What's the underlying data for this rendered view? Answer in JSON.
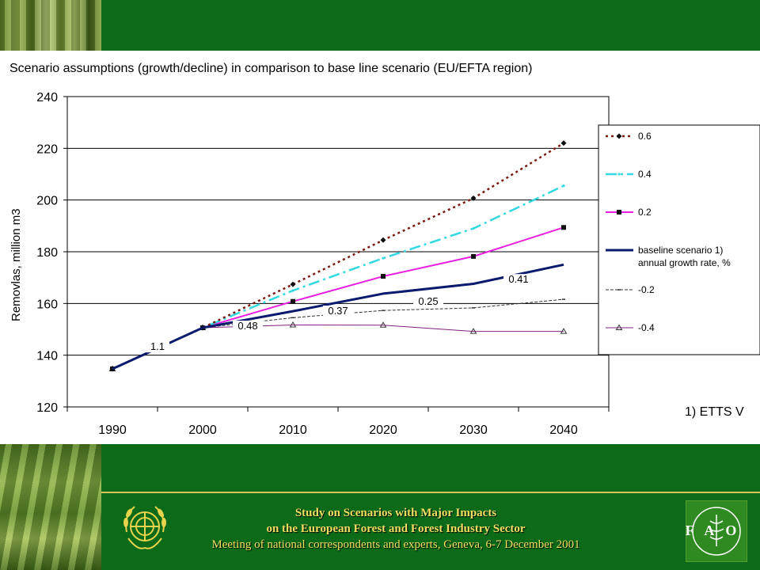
{
  "footer": {
    "line1": "Study on Scenarios with Major Impacts",
    "line2": "on the European Forest and Forest Industry Sector",
    "line3": "Meeting of national correspondents and experts, Geneva, 6-7 December 2001"
  },
  "logos": {
    "un": "un-emblem",
    "fao": "FAO"
  },
  "colors": {
    "band": "#0c6a18",
    "gold": "#f3df62"
  },
  "chart_data": {
    "type": "line",
    "title": "Scenario assumptions (growth/decline) in comparison to base line scenario (EU/EFTA region)",
    "ylabel": "Removlas, million m3",
    "xlabel": "",
    "categories": [
      "1990",
      "2000",
      "2010",
      "2020",
      "2030",
      "2040"
    ],
    "ylim": [
      120,
      240
    ],
    "yticks": [
      120,
      140,
      160,
      180,
      200,
      220,
      240
    ],
    "grid": "horizontal",
    "legend_position": "right",
    "note": "1) ETTS V",
    "series": [
      {
        "name": "0.6",
        "values": [
          134.7,
          150.6,
          167.4,
          184.5,
          200.7,
          222.0
        ],
        "color": "#7a1a12",
        "dash": "3 4",
        "marker": "diamond",
        "width": 2.5
      },
      {
        "name": "0.4",
        "values": [
          134.7,
          150.6,
          165.0,
          177.5,
          189.0,
          205.5
        ],
        "color": "#33d9e0",
        "dash": "14 5 3 5",
        "marker": "dot",
        "width": 2.5
      },
      {
        "name": "0.2",
        "values": [
          134.7,
          150.6,
          160.8,
          170.5,
          178.2,
          189.4
        ],
        "color": "#e81ee0",
        "dash": "",
        "marker": "square",
        "width": 2
      },
      {
        "name": "baseline scenario 1) annual growth rate, %",
        "values": [
          134.7,
          150.6,
          157.0,
          163.8,
          167.6,
          175.0
        ],
        "color": "#0a1a6e",
        "dash": "",
        "marker": "none",
        "width": 3
      },
      {
        "name": "-0.2",
        "values": [
          134.7,
          150.6,
          154.5,
          157.3,
          158.3,
          161.6
        ],
        "color": "#333333",
        "dash": "4 2",
        "marker": "dash",
        "width": 1
      },
      {
        "name": "-0.4",
        "values": [
          134.7,
          150.6,
          151.7,
          151.6,
          149.2,
          149.2
        ],
        "color": "#802080",
        "dash": "",
        "marker": "triangle",
        "width": 1
      }
    ],
    "annotations": [
      {
        "text": "1.1",
        "x": 1995,
        "y": 142.0
      },
      {
        "text": "0.48",
        "x": 2005,
        "y": 150.0
      },
      {
        "text": "0.37",
        "x": 2015,
        "y": 155.8
      },
      {
        "text": "0.25",
        "x": 2025,
        "y": 159.5
      },
      {
        "text": "0.41",
        "x": 2035,
        "y": 168.0
      }
    ],
    "legend_entries": [
      "0.6",
      "0.4",
      "0.2",
      "baseline scenario 1)",
      "annual growth rate, %",
      "-0.2",
      "-0.4"
    ]
  }
}
